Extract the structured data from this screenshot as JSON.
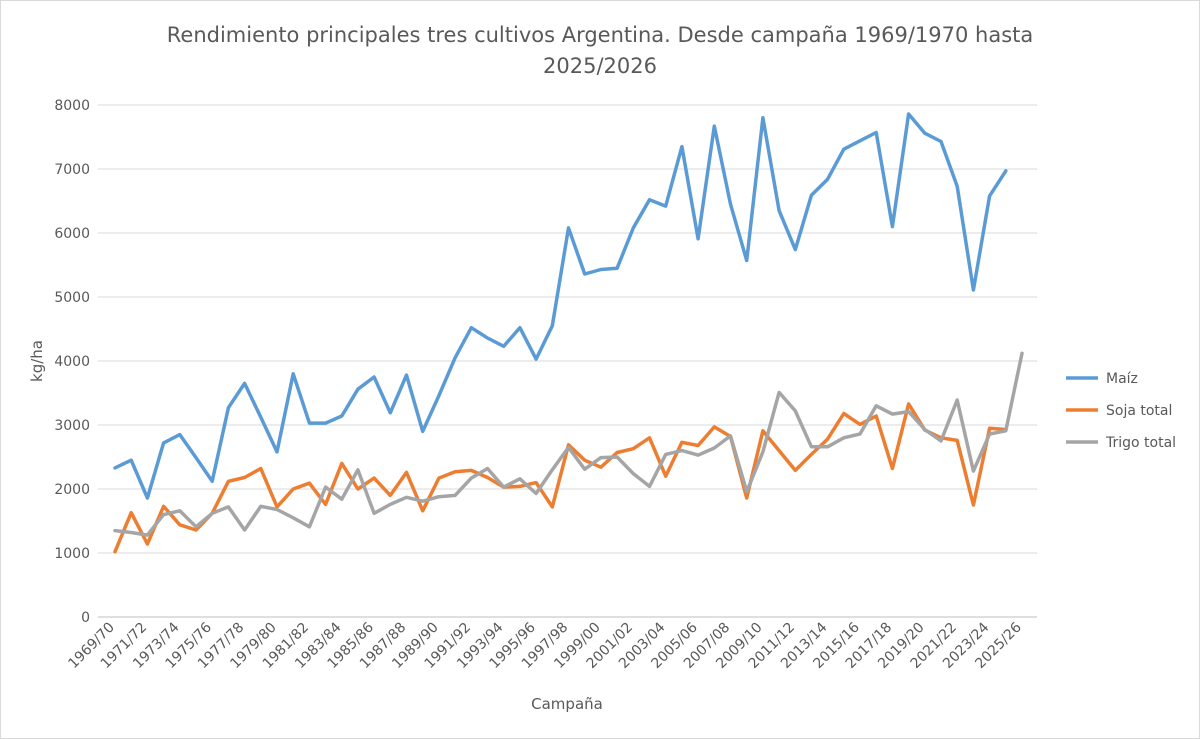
{
  "chart_data": {
    "type": "line",
    "title_line1": "Rendimiento principales tres cultivos Argentina. Desde campaña 1969/1970 hasta",
    "title_line2": "2025/2026",
    "xlabel": "Campaña",
    "ylabel": "kg/ha",
    "ylim": [
      0,
      8000
    ],
    "y_ticks": [
      0,
      1000,
      2000,
      3000,
      4000,
      5000,
      6000,
      7000,
      8000
    ],
    "grid": "horizontal",
    "legend_position": "right",
    "categories": [
      "1969/70",
      "1970/71",
      "1971/72",
      "1972/73",
      "1973/74",
      "1974/75",
      "1975/76",
      "1976/77",
      "1977/78",
      "1978/79",
      "1979/80",
      "1980/81",
      "1981/82",
      "1982/83",
      "1983/84",
      "1984/85",
      "1985/86",
      "1986/87",
      "1987/88",
      "1988/89",
      "1989/90",
      "1990/91",
      "1991/92",
      "1992/93",
      "1993/94",
      "1994/95",
      "1995/96",
      "1996/97",
      "1997/98",
      "1998/99",
      "1999/00",
      "2000/01",
      "2001/02",
      "2002/03",
      "2003/04",
      "2004/05",
      "2005/06",
      "2006/07",
      "2007/08",
      "2008/09",
      "2009/10",
      "2010/11",
      "2011/12",
      "2012/13",
      "2013/14",
      "2014/15",
      "2015/16",
      "2016/17",
      "2017/18",
      "2018/19",
      "2019/20",
      "2020/21",
      "2021/22",
      "2022/23",
      "2023/24",
      "2024/25",
      "2025/26"
    ],
    "tick_labels": [
      "1969/70",
      "1971/72",
      "1973/74",
      "1975/76",
      "1977/78",
      "1979/80",
      "1981/82",
      "1983/84",
      "1985/86",
      "1987/88",
      "1989/90",
      "1991/92",
      "1993/94",
      "1995/96",
      "1997/98",
      "1999/00",
      "2001/02",
      "2003/04",
      "2005/06",
      "2007/08",
      "2009/10",
      "2011/12",
      "2013/14",
      "2015/16",
      "2017/18",
      "2019/20",
      "2021/22",
      "2023/24",
      "2025/26"
    ],
    "series": [
      {
        "name": "Maíz",
        "color": "#5b9bd5",
        "values": [
          2330,
          2450,
          1860,
          2720,
          2850,
          2490,
          2120,
          3270,
          3650,
          3120,
          2580,
          3800,
          3030,
          3030,
          3140,
          3560,
          3750,
          3190,
          3780,
          2900,
          3460,
          4050,
          4520,
          4360,
          4230,
          4520,
          4030,
          4550,
          6080,
          5360,
          5430,
          5450,
          6080,
          6520,
          6420,
          7350,
          5910,
          7670,
          6450,
          5570,
          7800,
          6350,
          5740,
          6590,
          6840,
          7310,
          7440,
          7570,
          6100,
          7860,
          7560,
          7430,
          6730,
          5110,
          6580,
          6970,
          null
        ]
      },
      {
        "name": "Soja total",
        "color": "#ed7d31",
        "values": [
          1020,
          1630,
          1140,
          1730,
          1440,
          1360,
          1620,
          2120,
          2180,
          2320,
          1720,
          2000,
          2090,
          1760,
          2400,
          2000,
          2170,
          1900,
          2260,
          1660,
          2170,
          2270,
          2290,
          2180,
          2030,
          2040,
          2100,
          1720,
          2690,
          2450,
          2340,
          2570,
          2630,
          2800,
          2200,
          2730,
          2680,
          2970,
          2820,
          1860,
          2910,
          2600,
          2290,
          2540,
          2780,
          3180,
          3010,
          3140,
          2320,
          3330,
          2920,
          2800,
          2760,
          1750,
          2950,
          2930,
          null
        ]
      },
      {
        "name": "Trigo total",
        "color": "#a5a5a5",
        "values": [
          1350,
          1320,
          1280,
          1600,
          1660,
          1410,
          1620,
          1720,
          1360,
          1730,
          1680,
          1550,
          1410,
          2030,
          1840,
          2300,
          1620,
          1760,
          1870,
          1810,
          1880,
          1900,
          2170,
          2320,
          2030,
          2160,
          1930,
          2300,
          2650,
          2310,
          2490,
          2500,
          2240,
          2040,
          2540,
          2600,
          2530,
          2640,
          2830,
          1960,
          2580,
          3510,
          3220,
          2660,
          2660,
          2800,
          2860,
          3300,
          3170,
          3210,
          2930,
          2750,
          3390,
          2280,
          2860,
          2910,
          4120
        ]
      }
    ]
  }
}
